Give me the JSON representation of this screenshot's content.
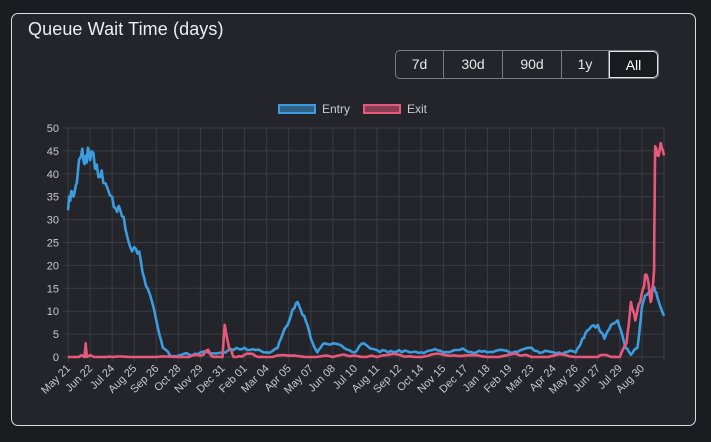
{
  "card": {
    "title": "Queue Wait Time (days)"
  },
  "range_buttons": [
    {
      "label": "7d",
      "active": false
    },
    {
      "label": "30d",
      "active": false
    },
    {
      "label": "90d",
      "active": false
    },
    {
      "label": "1y",
      "active": false
    },
    {
      "label": "All",
      "active": true
    }
  ],
  "colors": {
    "entry": "#3b9ddf",
    "exit": "#e9587a",
    "grid": "#3a3d43",
    "background": "#23252a"
  },
  "chart_data": {
    "type": "line",
    "title": "",
    "xlabel": "",
    "ylabel": "",
    "ylim": [
      0,
      50
    ],
    "y_ticks": [
      0,
      5,
      10,
      15,
      20,
      25,
      30,
      35,
      40,
      45,
      50
    ],
    "grid": true,
    "legend_position": "top-center",
    "categories": [
      "May 21",
      "Jun 22",
      "Jul 24",
      "Aug 25",
      "Sep 26",
      "Oct 28",
      "Nov 29",
      "Dec 31",
      "Feb 01",
      "Mar 04",
      "Apr 05",
      "May 07",
      "Jun 08",
      "Jul 10",
      "Aug 11",
      "Sep 12",
      "Oct 14",
      "Nov 15",
      "Dec 17",
      "Jan 18",
      "Feb 19",
      "Mar 23",
      "Apr 24",
      "May 26",
      "Jun 27",
      "Jul 29",
      "Aug 30"
    ],
    "series": [
      {
        "name": "Entry",
        "color": "#3b9ddf",
        "points": [
          [
            0,
            32
          ],
          [
            0.2,
            36
          ],
          [
            0.4,
            38
          ],
          [
            0.6,
            44
          ],
          [
            0.8,
            44
          ],
          [
            1,
            43
          ],
          [
            1.3,
            42
          ],
          [
            1.6,
            38
          ],
          [
            2,
            35
          ],
          [
            2.3,
            33
          ],
          [
            2.6,
            28
          ],
          [
            3,
            24
          ],
          [
            3.3,
            21
          ],
          [
            3.6,
            15
          ],
          [
            4,
            8
          ],
          [
            4.3,
            2
          ],
          [
            4.6,
            0.5
          ],
          [
            5,
            0.3
          ],
          [
            5.5,
            0.5
          ],
          [
            6,
            1
          ],
          [
            6.5,
            0.8
          ],
          [
            7,
            1
          ],
          [
            7.5,
            1.5
          ],
          [
            8,
            2
          ],
          [
            8.5,
            1.5
          ],
          [
            9,
            1
          ],
          [
            9.5,
            2
          ],
          [
            9.8,
            6
          ],
          [
            10.1,
            9
          ],
          [
            10.4,
            12
          ],
          [
            10.7,
            9
          ],
          [
            11,
            4
          ],
          [
            11.3,
            1
          ],
          [
            11.6,
            3
          ],
          [
            12,
            3
          ],
          [
            12.5,
            2
          ],
          [
            13,
            1
          ],
          [
            13.4,
            3
          ],
          [
            14,
            1.5
          ],
          [
            14.5,
            1
          ],
          [
            15,
            1.5
          ],
          [
            15.5,
            1
          ],
          [
            16,
            1
          ],
          [
            16.5,
            1.5
          ],
          [
            17,
            1
          ],
          [
            17.5,
            1.5
          ],
          [
            18,
            1.5
          ],
          [
            18.5,
            1
          ],
          [
            19,
            1
          ],
          [
            19.5,
            1.5
          ],
          [
            20,
            1
          ],
          [
            20.5,
            1.5
          ],
          [
            21,
            2
          ],
          [
            21.5,
            1
          ],
          [
            22,
            1
          ],
          [
            22.5,
            1
          ],
          [
            23,
            1
          ],
          [
            23.3,
            4
          ],
          [
            23.6,
            6
          ],
          [
            24,
            7
          ],
          [
            24.3,
            4
          ],
          [
            24.6,
            7
          ],
          [
            24.9,
            8
          ],
          [
            25.2,
            3
          ],
          [
            25.5,
            0.5
          ],
          [
            25.8,
            2
          ],
          [
            26,
            11
          ],
          [
            26.3,
            14
          ],
          [
            26.5,
            15
          ],
          [
            26.7,
            13
          ],
          [
            27,
            9
          ]
        ]
      },
      {
        "name": "Exit",
        "color": "#e9587a",
        "points": [
          [
            0,
            0
          ],
          [
            0.5,
            0
          ],
          [
            0.75,
            0
          ],
          [
            0.8,
            3
          ],
          [
            0.85,
            0
          ],
          [
            1.5,
            0
          ],
          [
            2,
            0
          ],
          [
            3,
            0
          ],
          [
            4,
            0
          ],
          [
            5,
            0
          ],
          [
            5.5,
            0
          ],
          [
            6,
            0.3
          ],
          [
            6.3,
            1.5
          ],
          [
            6.5,
            0.2
          ],
          [
            7,
            0
          ],
          [
            7.1,
            7
          ],
          [
            7.3,
            2
          ],
          [
            7.5,
            0
          ],
          [
            8,
            0.5
          ],
          [
            8.5,
            0.2
          ],
          [
            9,
            0
          ],
          [
            10,
            0.3
          ],
          [
            11,
            0
          ],
          [
            12,
            0
          ],
          [
            13,
            0.3
          ],
          [
            14,
            0
          ],
          [
            15,
            0.5
          ],
          [
            16,
            0
          ],
          [
            17,
            0.5
          ],
          [
            18,
            0.3
          ],
          [
            19,
            0
          ],
          [
            20,
            0.5
          ],
          [
            21,
            0
          ],
          [
            22,
            0.3
          ],
          [
            23,
            0
          ],
          [
            24,
            0
          ],
          [
            24.5,
            0.2
          ],
          [
            25,
            0
          ],
          [
            25.3,
            3
          ],
          [
            25.5,
            12
          ],
          [
            25.7,
            8
          ],
          [
            26,
            14
          ],
          [
            26.2,
            18
          ],
          [
            26.4,
            12
          ],
          [
            26.55,
            19
          ],
          [
            26.6,
            46
          ],
          [
            26.8,
            45
          ],
          [
            27,
            44
          ]
        ]
      }
    ]
  }
}
